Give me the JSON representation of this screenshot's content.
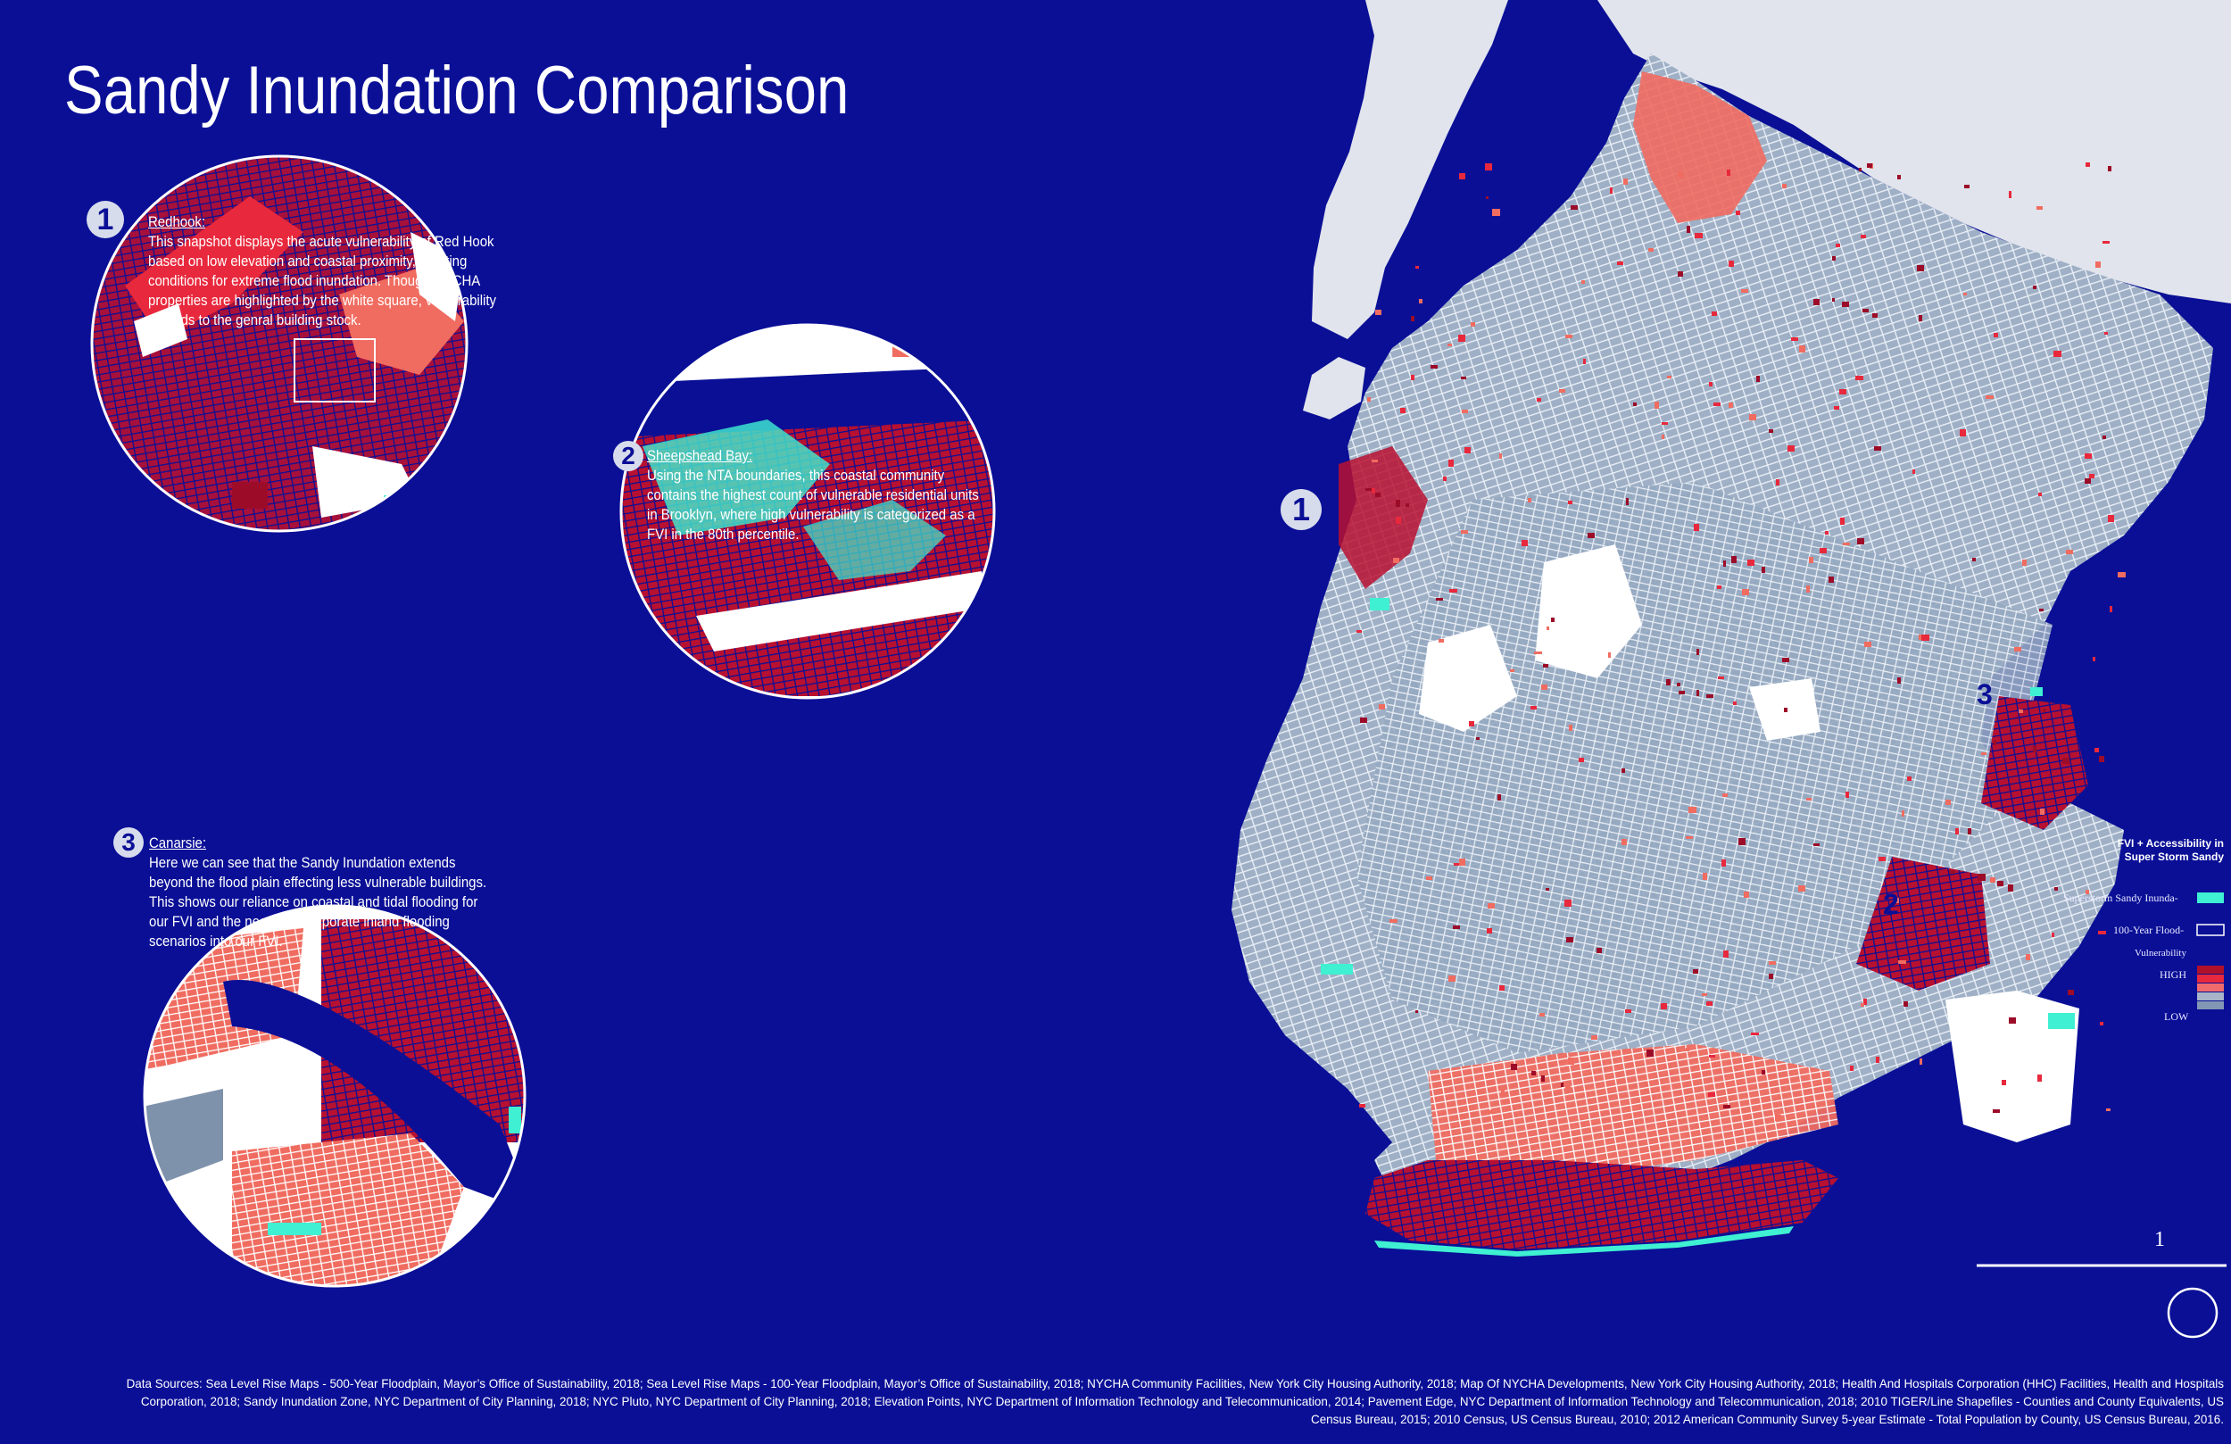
{
  "title": "Sandy Inundation Comparison",
  "panels": [
    {
      "number": "1",
      "heading": "Redhook:",
      "body": "This snapshot displays the acute vulnerability of Red Hook based on low elevation and coastal proximity, creating conditions for extreme flood inundation.  Though NYCHA properties are highlighted by the white square, vulnerability extends to the genral building stock."
    },
    {
      "number": "2",
      "heading": "Sheepshead Bay:",
      "body": "Using the NTA boundaries, this coastal community contains the highest count of vulnerable residential units in Brooklyn, where high vulnerability is categorized as a FVI in the 80th percentile."
    },
    {
      "number": "3",
      "heading": "Canarsie:",
      "body": "Here we can see that the Sandy Inundation extends beyond the flood plain effecting less vulnerable buildings.  This shows our reliance on coastal and tidal flooding for our FVI and the need to incorporate inland flooding scenarios into our FVI."
    }
  ],
  "map_labels": [
    "1",
    "2",
    "3"
  ],
  "legend": {
    "title": "FVI + Accessibility in Super Storm Sandy",
    "items": [
      {
        "label": "Superstorm Sandy Inunda-",
        "color": "#3ff0d2"
      },
      {
        "label": "100-Year Flood-",
        "color": "#0a0f96"
      }
    ],
    "vulnerability_label": "Vulnerability",
    "high_label": "HIGH",
    "low_label": "LOW",
    "ramp": [
      "#b0102a",
      "#e8283c",
      "#f06c6c",
      "#a8b4c8",
      "#8098b4"
    ]
  },
  "scale_label": "1",
  "footer": "Data Sources: Sea Level Rise Maps - 500-Year Floodplain, Mayor’s Office of Sustainability, 2018;  Sea Level Rise Maps - 100-Year Floodplain, Mayor’s Office of Sustainability, 2018; NYCHA Community Facilities, New York City Housing Authority,  2018; Map Of NYCHA Developments, New York City Housing Authority,  2018;  Health And Hospitals Corporation (HHC) Facilities, Health and Hospitals Corporation, 2018; Sandy Inundation Zone, NYC Department of City Planning, 2018;  NYC Pluto, NYC Department of City Planning, 2018; Elevation Points, NYC Department of Information Technology and Telecommunication, 2014; Pavement Edge, NYC Department of Information Technology and Telecommunication, 2018; 2010 TIGER/Line Shapefiles - Counties and County Equivalents, US Census Bureau, 2015; 2010 Census, US Census Bureau, 2010; 2012 American Community Survey 5-year Estimate - Total Population by County, US Census Bureau, 2016.",
  "colors": {
    "background": "#0a0f96",
    "land": "#a8b8cc",
    "water_neighbor": "#e1e4ec",
    "high": "#9c0c28",
    "mid": "#ec4050",
    "inundation": "#3ff0d2"
  }
}
